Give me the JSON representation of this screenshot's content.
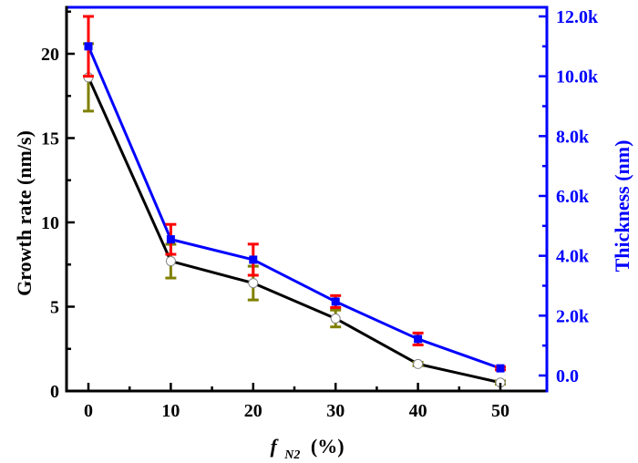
{
  "chart_data": {
    "type": "line",
    "title": "",
    "xlabel": "f",
    "xlabel_subscript": "N2",
    "xlabel_suffix": "(%)",
    "ylabel": "Growth rate (nm/s)",
    "y2label": "Thickness (nm)",
    "x": [
      0,
      10,
      20,
      30,
      40,
      50
    ],
    "xlim": [
      -4.5,
      53
    ],
    "ylim": [
      0,
      22.5
    ],
    "y2lim": [
      -0.5,
      12.5
    ],
    "x_ticks": [
      0,
      10,
      20,
      30,
      40,
      50
    ],
    "x_tick_labels": [
      "0",
      "10",
      "20",
      "30",
      "40",
      "50"
    ],
    "y_ticks": [
      0,
      5,
      10,
      15,
      20
    ],
    "y_tick_labels": [
      "0",
      "5",
      "10",
      "15",
      "20"
    ],
    "y2_ticks": [
      0,
      2,
      4,
      6,
      8,
      10,
      12
    ],
    "y2_tick_labels": [
      "0.0",
      "2.0k",
      "4.0k",
      "6.0k",
      "8.0k",
      "10.0k",
      "12.0k"
    ],
    "grid": false,
    "legend": "none",
    "series": [
      {
        "name": "Growth rate",
        "axis": "left",
        "unit": "nm/s",
        "values": [
          18.6,
          7.7,
          6.4,
          4.3,
          1.6,
          0.5
        ],
        "errors": [
          2.0,
          1.0,
          1.0,
          0.5,
          0.1,
          0.1
        ],
        "line_color": "#000000",
        "error_color": "#808000",
        "marker": "open-circle"
      },
      {
        "name": "Thickness",
        "axis": "right",
        "unit": "k nm",
        "values": [
          11.0,
          4.55,
          3.87,
          2.47,
          1.22,
          0.24
        ],
        "errors": [
          1.0,
          0.5,
          0.52,
          0.2,
          0.2,
          0.05
        ],
        "line_color": "#0000ff",
        "error_color": "#ff0000",
        "marker": "square"
      }
    ],
    "colors": {
      "left_axis": "#000000",
      "right_axis": "#0000ff"
    }
  }
}
